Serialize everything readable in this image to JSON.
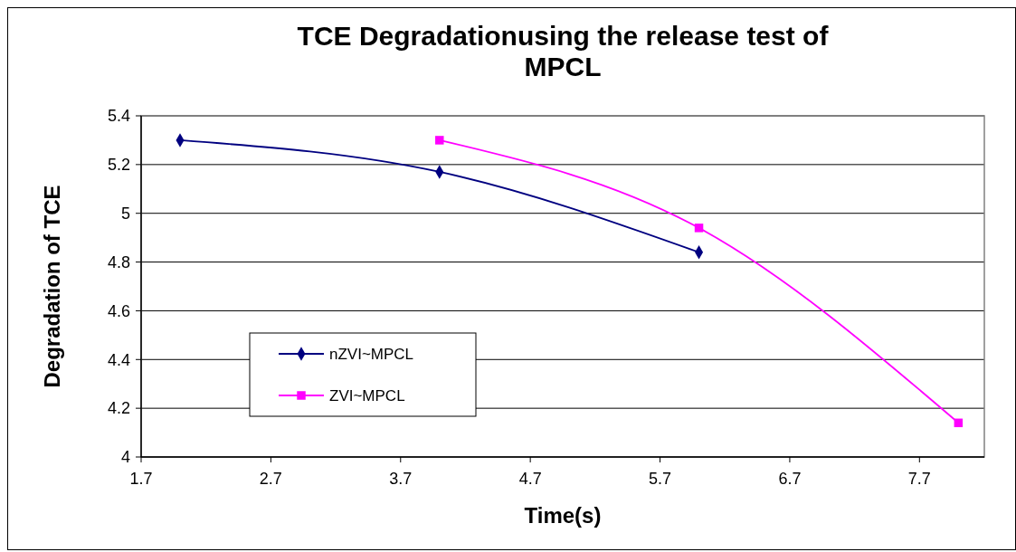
{
  "chart_data": {
    "type": "line",
    "title": "TCE Degradationusing the release test of MPCL",
    "xlabel": "Time(s)",
    "ylabel": "Degradation of TCE",
    "x": [
      2,
      4,
      6
    ],
    "series": [
      {
        "name": "nZVI~MPCL",
        "color": "#000080",
        "marker": "diamond",
        "values": [
          5.3,
          5.17,
          4.84
        ]
      },
      {
        "name": "ZVI~MPCL",
        "color": "#ff00ff",
        "marker": "square",
        "x": [
          4,
          6,
          8
        ],
        "values": [
          5.3,
          4.94,
          4.14
        ]
      }
    ],
    "xlim": [
      1.7,
      8.2
    ],
    "xticks": [
      1.7,
      2.7,
      3.7,
      4.7,
      5.7,
      6.7,
      7.7
    ],
    "ylim": [
      4,
      5.4
    ],
    "yticks": [
      4,
      {
        "value": 4.2,
        "label": "4.2"
      },
      {
        "value": 4.4,
        "label": "4.4"
      },
      {
        "value": 4.6,
        "label": "4.6"
      },
      {
        "value": 4.8,
        "label": "4.8"
      },
      5,
      {
        "value": 5.2,
        "label": "5.2"
      },
      {
        "value": 5.4,
        "label": "5.4"
      }
    ],
    "grid": "y",
    "legend": "bottom left",
    "line_style": "solid"
  }
}
